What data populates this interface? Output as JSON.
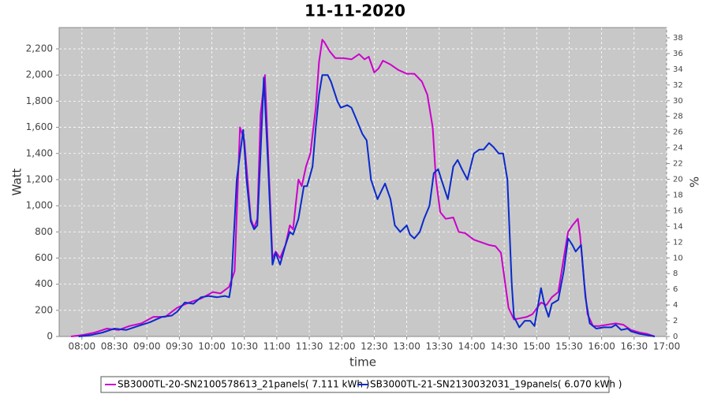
{
  "chart_data": {
    "type": "line",
    "title": "11-11-2020",
    "xlabel": "time",
    "ylabel": "Watt",
    "y2label": "%",
    "xlim": [
      "07:39",
      "17:00"
    ],
    "xticks": [
      "08:00",
      "08:30",
      "09:00",
      "09:30",
      "10:00",
      "10:30",
      "11:00",
      "11:30",
      "12:00",
      "12:30",
      "13:00",
      "13:30",
      "14:00",
      "14:30",
      "15:00",
      "15:30",
      "16:00",
      "16:30",
      "17:00"
    ],
    "ylim": [
      0,
      2363
    ],
    "yticks": [
      0,
      200,
      400,
      600,
      800,
      {
        "value": 1000,
        "label": "1,000"
      },
      {
        "value": 1200,
        "label": "1,200"
      },
      {
        "value": 1400,
        "label": "1,400"
      },
      {
        "value": 1600,
        "label": "1,600"
      },
      {
        "value": 1800,
        "label": "1,800"
      },
      {
        "value": 2000,
        "label": "2,000"
      },
      {
        "value": 2200,
        "label": "2,200"
      }
    ],
    "y2lim": [
      0,
      39.3
    ],
    "y2ticks": [
      0,
      2,
      4,
      6,
      8,
      10,
      12,
      14,
      16,
      18,
      20,
      22,
      24,
      26,
      28,
      30,
      32,
      34,
      36,
      38
    ],
    "grid": true,
    "series": [
      {
        "name": "SB3000TL-20-SN2100578613_21panels( 7.111 kWh )",
        "color": "#cc00cc",
        "x": [
          "07:50",
          "08:00",
          "08:12",
          "08:23",
          "08:34",
          "08:44",
          "08:55",
          "09:06",
          "09:17",
          "09:28",
          "09:39",
          "09:50",
          "10:01",
          "10:08",
          "10:16",
          "10:21",
          "10:26",
          "10:30",
          "10:36",
          "10:39",
          "10:42",
          "10:45",
          "10:49",
          "10:52",
          "10:56",
          "10:59",
          "11:03",
          "11:08",
          "11:12",
          "11:15",
          "11:20",
          "11:23",
          "11:27",
          "11:31",
          "11:36",
          "11:39",
          "11:42",
          "11:44",
          "11:49",
          "11:54",
          "12:01",
          "12:09",
          "12:16",
          "12:21",
          "12:25",
          "12:30",
          "12:34",
          "12:38",
          "12:45",
          "12:52",
          "13:00",
          "13:07",
          "13:14",
          "13:19",
          "13:24",
          "13:27",
          "13:31",
          "13:36",
          "13:43",
          "13:48",
          "13:54",
          "14:02",
          "14:09",
          "14:16",
          "14:22",
          "14:27",
          "14:31",
          "14:34",
          "14:39",
          "14:45",
          "14:51",
          "14:56",
          "15:04",
          "15:09",
          "15:14",
          "15:20",
          "15:25",
          "15:29",
          "15:33",
          "15:38",
          "15:40",
          "15:44",
          "15:47",
          "15:52",
          "15:58",
          "16:05",
          "16:13",
          "16:20",
          "16:27",
          "16:35",
          "16:42",
          "16:49"
        ],
        "values": [
          0,
          10,
          30,
          60,
          50,
          80,
          100,
          150,
          150,
          220,
          260,
          290,
          340,
          330,
          380,
          500,
          1600,
          1500,
          900,
          830,
          900,
          1700,
          2000,
          1400,
          600,
          650,
          600,
          700,
          850,
          820,
          1200,
          1150,
          1300,
          1400,
          1750,
          2100,
          2270,
          2250,
          2180,
          2130,
          2130,
          2120,
          2160,
          2120,
          2140,
          2020,
          2050,
          2110,
          2080,
          2040,
          2010,
          2010,
          1950,
          1850,
          1600,
          1200,
          950,
          900,
          910,
          800,
          790,
          740,
          720,
          700,
          690,
          640,
          400,
          220,
          130,
          140,
          150,
          170,
          260,
          240,
          300,
          340,
          600,
          800,
          850,
          900,
          780,
          400,
          170,
          80,
          80,
          90,
          100,
          90,
          50,
          30,
          20,
          0
        ]
      },
      {
        "name": "SB3000TL-21-SN2130032031_19panels( 6.070 kWh )",
        "color": "#0a2acc",
        "x": [
          "07:57",
          "08:08",
          "08:19",
          "08:30",
          "08:41",
          "08:52",
          "09:03",
          "09:14",
          "09:23",
          "09:28",
          "09:35",
          "09:43",
          "09:50",
          "09:57",
          "10:05",
          "10:12",
          "10:16",
          "10:18",
          "10:23",
          "10:29",
          "10:32",
          "10:36",
          "10:39",
          "10:42",
          "10:45",
          "10:48",
          "10:52",
          "10:56",
          "10:59",
          "11:03",
          "11:08",
          "11:12",
          "11:15",
          "11:20",
          "11:25",
          "11:28",
          "11:33",
          "11:36",
          "11:39",
          "11:42",
          "11:47",
          "11:50",
          "11:56",
          "11:59",
          "12:05",
          "12:09",
          "12:14",
          "12:19",
          "12:23",
          "12:27",
          "12:33",
          "12:37",
          "12:40",
          "12:45",
          "12:49",
          "12:54",
          "13:00",
          "13:03",
          "13:07",
          "13:12",
          "13:16",
          "13:21",
          "13:25",
          "13:29",
          "13:32",
          "13:38",
          "13:43",
          "13:47",
          "13:51",
          "13:56",
          "14:02",
          "14:07",
          "14:11",
          "14:16",
          "14:20",
          "14:25",
          "14:29",
          "14:33",
          "14:37",
          "14:39",
          "14:44",
          "14:49",
          "14:54",
          "14:58",
          "15:04",
          "15:07",
          "15:11",
          "15:14",
          "15:20",
          "15:25",
          "15:29",
          "15:33",
          "15:36",
          "15:41",
          "15:45",
          "15:49",
          "15:55",
          "16:02",
          "16:09",
          "16:13",
          "16:18",
          "16:24",
          "16:27",
          "16:35",
          "16:42",
          "16:49"
        ],
        "values": [
          0,
          10,
          30,
          60,
          50,
          80,
          110,
          150,
          160,
          190,
          260,
          250,
          300,
          310,
          300,
          310,
          300,
          400,
          1200,
          1580,
          1200,
          880,
          820,
          850,
          1400,
          1980,
          1300,
          550,
          640,
          550,
          700,
          800,
          780,
          900,
          1150,
          1150,
          1300,
          1600,
          1850,
          2000,
          2000,
          1950,
          1800,
          1750,
          1770,
          1750,
          1650,
          1550,
          1500,
          1200,
          1050,
          1120,
          1170,
          1050,
          850,
          800,
          850,
          780,
          750,
          800,
          900,
          1000,
          1250,
          1280,
          1200,
          1050,
          1300,
          1350,
          1280,
          1200,
          1400,
          1430,
          1430,
          1480,
          1450,
          1400,
          1400,
          1200,
          400,
          150,
          70,
          120,
          120,
          80,
          370,
          250,
          150,
          250,
          280,
          500,
          750,
          700,
          650,
          700,
          300,
          100,
          60,
          70,
          70,
          90,
          50,
          60,
          40,
          20,
          10,
          0
        ]
      }
    ]
  }
}
